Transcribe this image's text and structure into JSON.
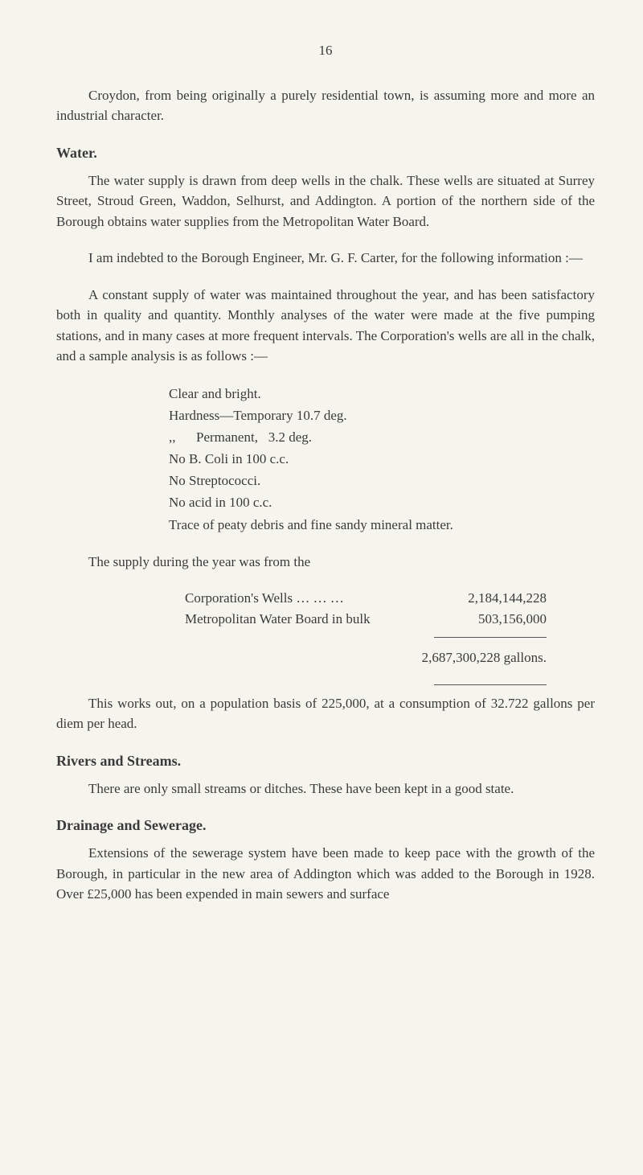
{
  "page_number": "16",
  "intro_para": "Croydon, from being originally a purely residential town, is assuming more and more an industrial character.",
  "water": {
    "heading": "Water.",
    "p1": "The water supply is drawn from deep wells in the chalk. These wells are situated at Surrey Street, Stroud Green, Waddon, Selhurst, and Addington. A portion of the northern side of the Borough obtains water supplies from the Metropolitan Water Board.",
    "p2": "I am indebted to the Borough Engineer, Mr. G. F. Carter, for the following information :—",
    "p3": "A constant supply of water was maintained throughout the year, and has been satisfactory both in quality and quantity. Monthly analyses of the water were made at the five pumping stations, and in many cases at more frequent intervals. The Corporation's wells are all in the chalk, and a sample analysis is as follows :—",
    "analysis": {
      "l1": "Clear and bright.",
      "l2": "Hardness—Temporary 10.7 deg.",
      "l3": ",,      Permanent,   3.2 deg.",
      "l4": "No B. Coli in 100 c.c.",
      "l5": "No Streptococci.",
      "l6": "No acid in 100 c.c.",
      "l7": "Trace of peaty debris and fine sandy mineral matter."
    },
    "supply_intro": "The supply during the year was from the",
    "supply_rows": [
      {
        "label": "Corporation's Wells …   …   …",
        "value": "2,184,144,228"
      },
      {
        "label": "Metropolitan Water Board in bulk",
        "value": "503,156,000"
      }
    ],
    "total": "2,687,300,228 gallons.",
    "p4": "This works out, on a population basis of 225,000, at a con­sumption of 32.722 gallons per diem per head."
  },
  "rivers": {
    "heading": "Rivers and Streams.",
    "p1": "There are only small streams or ditches. These have been kept in a good state."
  },
  "drainage": {
    "heading": "Drainage and Sewerage.",
    "p1": "Extensions of the sewerage system have been made to keep pace with the growth of the Borough, in particular in the new area of Addington which was added to the Borough in 1928. Over £25,000 has been expended in main sewers and surface"
  }
}
